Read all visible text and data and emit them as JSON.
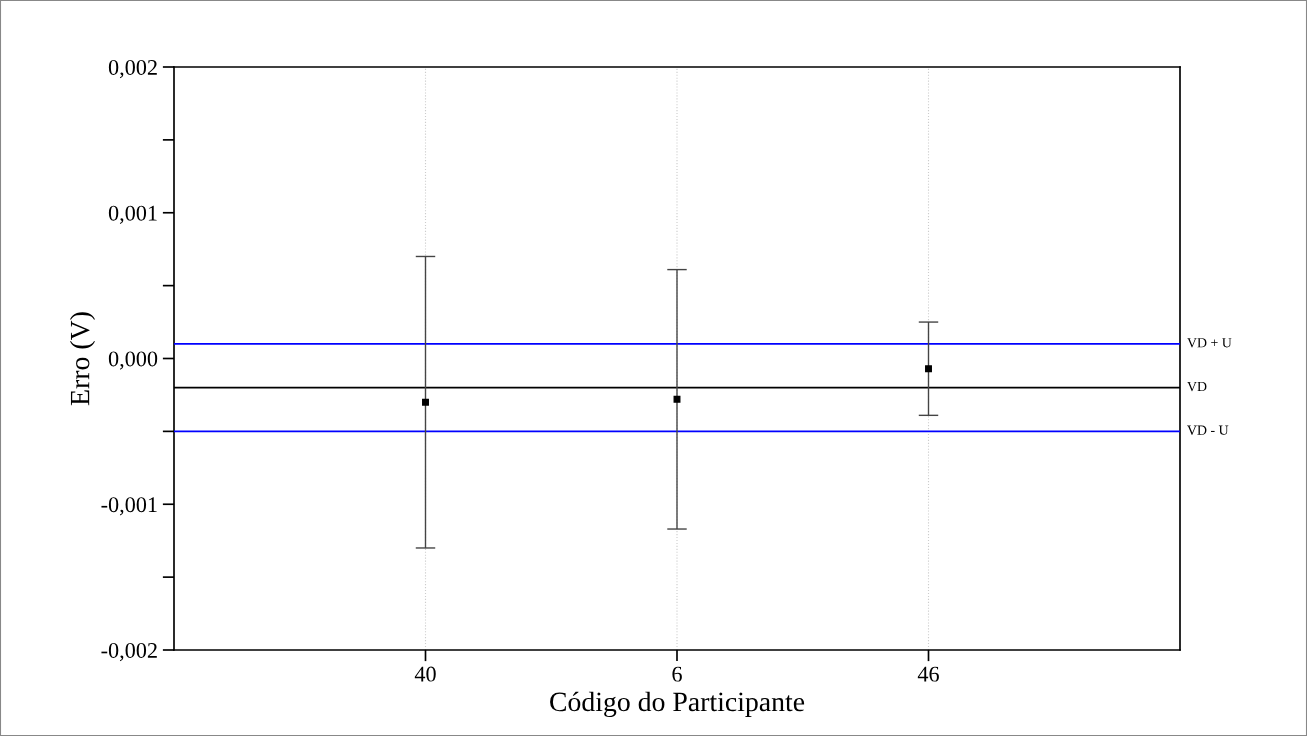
{
  "chart_data": {
    "type": "scatter",
    "xlabel": "Código do Participante",
    "ylabel": "Erro (V)",
    "categories": [
      "40",
      "6",
      "46"
    ],
    "series": [
      {
        "color": "#000000",
        "values": [
          -0.0003,
          -0.00028,
          -7e-05
        ],
        "errors": [
          0.001,
          0.00089,
          0.00032
        ]
      }
    ],
    "marker": "square",
    "ylim": [
      -0.002,
      0.002
    ],
    "yticks": [
      {
        "value": -0.002,
        "label": "-0,002"
      },
      {
        "value": -0.0015,
        "label": null
      },
      {
        "value": -0.001,
        "label": "-0,001"
      },
      {
        "value": -0.0005,
        "label": null
      },
      {
        "value": 0,
        "label": "0,000"
      },
      {
        "value": 0.0005,
        "label": null
      },
      {
        "value": 0.001,
        "label": "0,001"
      },
      {
        "value": 0.0015,
        "label": null
      },
      {
        "value": 0.002,
        "label": "0,002"
      }
    ],
    "grid": "x",
    "ref_lines": [
      {
        "axis": "y",
        "value": 0.0001,
        "label": "VD + U",
        "color": "#0000ff"
      },
      {
        "axis": "y",
        "value": -0.0002,
        "label": "VD",
        "color": "#000000"
      },
      {
        "axis": "y",
        "value": -0.0005,
        "label": "VD - U",
        "color": "#0000ff"
      }
    ]
  }
}
